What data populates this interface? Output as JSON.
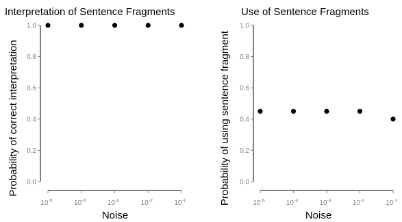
{
  "chart_data": [
    {
      "type": "scatter",
      "title": "Interpretation of Sentence Fragments",
      "xlabel": "Noise",
      "ylabel": "Probability of correct interpretation",
      "x_scale": "log",
      "x": [
        1e-05,
        0.0001,
        0.001,
        0.01,
        0.1
      ],
      "y": [
        1.0,
        1.0,
        1.0,
        1.0,
        1.0
      ],
      "x_tick_labels": [
        {
          "base": "10",
          "exp": "-5"
        },
        {
          "base": "10",
          "exp": "-4"
        },
        {
          "base": "10",
          "exp": "-3"
        },
        {
          "base": "10",
          "exp": "-2"
        },
        {
          "base": "10",
          "exp": "-1"
        }
      ],
      "y_ticks": [
        0.0,
        0.2,
        0.4,
        0.6,
        0.8,
        1.0
      ],
      "y_tick_labels": [
        "0.0",
        "0.2",
        "0.4",
        "0.6",
        "0.8",
        "1.0"
      ],
      "ylim": [
        0.0,
        1.0
      ],
      "grid": false
    },
    {
      "type": "scatter",
      "title": "Use of Sentence Fragments",
      "xlabel": "Noise",
      "ylabel": "Probability of using sentence fragment",
      "x_scale": "log",
      "x": [
        1e-05,
        0.0001,
        0.001,
        0.01,
        0.1
      ],
      "y": [
        0.45,
        0.45,
        0.45,
        0.45,
        0.4
      ],
      "x_tick_labels": [
        {
          "base": "10",
          "exp": "-5"
        },
        {
          "base": "10",
          "exp": "-4"
        },
        {
          "base": "10",
          "exp": "-3"
        },
        {
          "base": "10",
          "exp": "-2"
        },
        {
          "base": "10",
          "exp": "-1"
        }
      ],
      "y_ticks": [
        0.0,
        0.2,
        0.4,
        0.6,
        0.8,
        1.0
      ],
      "y_tick_labels": [
        "0.0",
        "0.2",
        "0.4",
        "0.6",
        "0.8",
        "1.0"
      ],
      "ylim": [
        0.0,
        1.0
      ],
      "grid": false
    }
  ]
}
